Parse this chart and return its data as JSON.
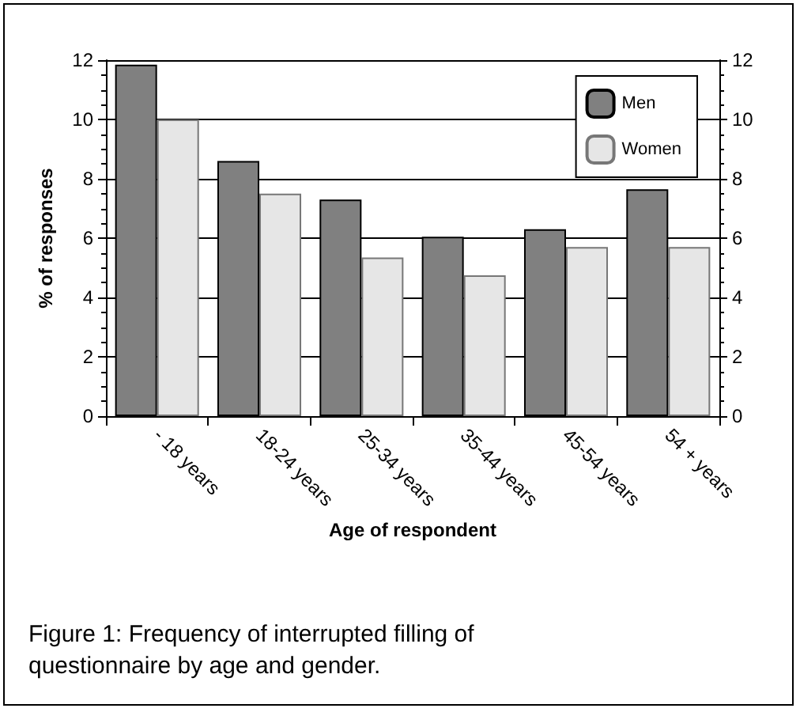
{
  "chart_data": {
    "type": "bar",
    "xlabel": "Age of respondent",
    "ylabel": "% of responses",
    "categories": [
      "- 18 years",
      "18-24 years",
      "25-34 years",
      "35-44 years",
      "45-54 years",
      "54 + years"
    ],
    "series": [
      {
        "name": "Men",
        "color": "#808080",
        "values": [
          11.85,
          8.6,
          7.3,
          6.05,
          6.3,
          7.65
        ]
      },
      {
        "name": "Women",
        "color": "#e6e6e6",
        "values": [
          10.0,
          7.5,
          5.35,
          4.75,
          5.7,
          5.7
        ]
      }
    ],
    "ylim": [
      0,
      12
    ],
    "yticks": [
      0,
      2,
      4,
      6,
      8,
      10,
      12
    ],
    "y2lim": [
      0,
      12
    ],
    "y2ticks": [
      0,
      2,
      4,
      6,
      8,
      10,
      12
    ],
    "grid": "y",
    "legend": "top right",
    "annotations": [
      "Figure 1: Frequency of interrupted filling of questionnaire by age and gender."
    ]
  }
}
